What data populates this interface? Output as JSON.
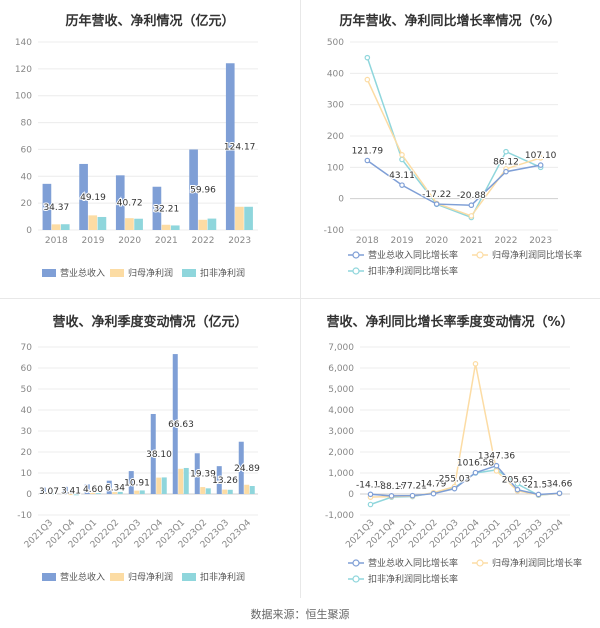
{
  "source": "数据来源：恒生聚源",
  "chart_data": [
    {
      "type": "bar",
      "title": "历年营收、净利情况（亿元）",
      "categories": [
        "2018",
        "2019",
        "2020",
        "2021",
        "2022",
        "2023"
      ],
      "ylim": [
        0,
        140
      ],
      "yticks": [
        0,
        20,
        40,
        60,
        80,
        100,
        120,
        140
      ],
      "series": [
        {
          "name": "营业总收入",
          "color": "#7f9fd6",
          "values": [
            34.37,
            49.19,
            40.72,
            32.21,
            59.96,
            124.17
          ]
        },
        {
          "name": "归母净利润",
          "color": "#fcdca4",
          "values": [
            4.2,
            10.9,
            8.8,
            3.9,
            7.6,
            17.3
          ]
        },
        {
          "name": "扣非净利润",
          "color": "#8fd6dc",
          "values": [
            4.3,
            9.7,
            8.4,
            3.4,
            8.5,
            17.3
          ]
        }
      ],
      "data_labels": [
        "34.37",
        "49.19",
        "40.72",
        "32.21",
        "59.96",
        "124.17"
      ]
    },
    {
      "type": "line",
      "title": "历年营收、净利同比增长率情况（%）",
      "categories": [
        "2018",
        "2019",
        "2020",
        "2021",
        "2022",
        "2023"
      ],
      "ylim": [
        -100,
        500
      ],
      "yticks": [
        -100,
        0,
        100,
        200,
        300,
        400,
        500
      ],
      "series": [
        {
          "name": "营业总收入同比增长率",
          "color": "#7f9fd6",
          "values": [
            121.79,
            43.11,
            -17.22,
            -20.88,
            86.12,
            107.1
          ]
        },
        {
          "name": "归母净利润同比增长率",
          "color": "#fcdca4",
          "values": [
            380,
            140,
            -15,
            -55,
            95,
            130
          ]
        },
        {
          "name": "扣非净利润同比增长率",
          "color": "#8fd6dc",
          "values": [
            450,
            125,
            -18,
            -60,
            150,
            100
          ]
        }
      ],
      "data_labels": [
        "121.79",
        "43.11",
        "-17.22",
        "-20.88",
        "86.12",
        "107.10"
      ]
    },
    {
      "type": "bar",
      "title": "营收、净利季度变动情况（亿元）",
      "categories": [
        "2021Q3",
        "2021Q4",
        "2022Q1",
        "2022Q2",
        "2022Q3",
        "2022Q4",
        "2023Q1",
        "2023Q2",
        "2023Q3",
        "2023Q4"
      ],
      "ylim": [
        -10,
        70
      ],
      "yticks": [
        -10,
        0,
        10,
        20,
        30,
        40,
        50,
        60,
        70
      ],
      "series": [
        {
          "name": "营业总收入",
          "color": "#7f9fd6",
          "values": [
            3.07,
            3.41,
            4.6,
            6.34,
            10.91,
            38.1,
            66.63,
            19.39,
            13.26,
            24.89
          ]
        },
        {
          "name": "归母净利润",
          "color": "#fcdca4",
          "values": [
            0.4,
            -0.5,
            0.6,
            0.9,
            1.6,
            7.8,
            12.0,
            3.3,
            2.1,
            4.4
          ]
        },
        {
          "name": "扣非净利润",
          "color": "#8fd6dc",
          "values": [
            0.2,
            -0.6,
            0.4,
            1.0,
            1.7,
            7.9,
            12.4,
            2.7,
            2.0,
            3.8
          ]
        }
      ],
      "data_labels": [
        "3.07",
        "3.41",
        "4.60",
        "6.34",
        "10.91",
        "38.10",
        "66.63",
        "19.39",
        "13.26",
        "24.89"
      ]
    },
    {
      "type": "line",
      "title": "营收、净利同比增长率季度变动情况（%）",
      "categories": [
        "2021Q3",
        "2021Q4",
        "2022Q1",
        "2022Q2",
        "2022Q3",
        "2022Q4",
        "2023Q1",
        "2023Q2",
        "2023Q3",
        "2023Q4"
      ],
      "ylim": [
        -1000,
        7000
      ],
      "yticks": [
        -1000,
        0,
        1000,
        2000,
        3000,
        4000,
        5000,
        6000,
        7000
      ],
      "series": [
        {
          "name": "营业总收入同比增长率",
          "color": "#7f9fd6",
          "values": [
            -14.18,
            -88.15,
            -77.21,
            14.79,
            255.03,
            1016.58,
            1347.36,
            205.62,
            -21.53,
            34.66
          ]
        },
        {
          "name": "归母净利润同比增长率",
          "color": "#fcdca4",
          "values": [
            -150,
            -120,
            -100,
            60,
            350,
            6200,
            1100,
            150,
            -40,
            20
          ]
        },
        {
          "name": "扣非净利润同比增长率",
          "color": "#8fd6dc",
          "values": [
            -500,
            -150,
            -120,
            50,
            300,
            1000,
            1150,
            480,
            -60,
            30
          ]
        }
      ],
      "data_labels": [
        "-14.18",
        "-88.15",
        "-77.21",
        "14.79",
        "255.03",
        "1016.58",
        "1347.36",
        "205.62",
        "-21.53",
        "34.66"
      ]
    }
  ]
}
